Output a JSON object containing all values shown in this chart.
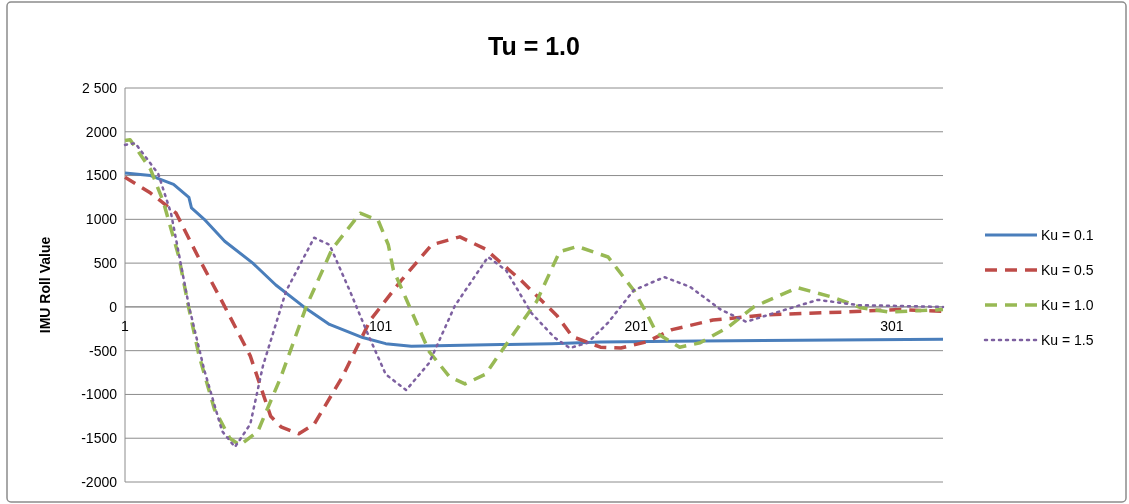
{
  "chart_data": {
    "type": "line",
    "title": "Tu = 1.0",
    "ylabel": "IMU Roll Value",
    "xlim": [
      1,
      321
    ],
    "xticks": [
      1,
      101,
      201,
      301
    ],
    "ylim": [
      -2000,
      2500
    ],
    "yticks": [
      -2000,
      -1500,
      -1000,
      -500,
      0,
      500,
      1000,
      1500,
      2000,
      {
        "value": 2500,
        "label": "2 500"
      }
    ],
    "grid": "y",
    "legend": "right",
    "marker": "none",
    "series": [
      {
        "name": "Ku = 0.1",
        "color": "#4a7ebb",
        "line_style": "solid",
        "x": [
          1,
          11,
          20,
          26,
          27,
          32,
          40,
          51,
          60,
          71,
          81,
          94,
          103,
          113,
          128,
          148,
          168,
          187,
          226,
          265,
          321
        ],
        "values": [
          1530,
          1500,
          1400,
          1250,
          1130,
          1000,
          750,
          500,
          250,
          0,
          -200,
          -350,
          -420,
          -450,
          -440,
          -430,
          -420,
          -400,
          -390,
          -380,
          -370
        ]
      },
      {
        "name": "Ku = 0.5",
        "color": "#be4b48",
        "line_style": "dashed",
        "x": [
          1,
          11,
          21,
          30,
          39,
          50,
          58,
          62,
          69,
          75,
          86,
          97,
          109,
          121,
          132,
          142,
          156,
          170,
          176,
          187,
          195,
          205,
          215,
          231,
          252,
          281,
          304,
          321
        ],
        "values": [
          1480,
          1300,
          1070,
          550,
          60,
          -560,
          -1250,
          -1370,
          -1450,
          -1340,
          -800,
          -150,
          300,
          710,
          800,
          660,
          300,
          -100,
          -340,
          -460,
          -470,
          -400,
          -260,
          -150,
          -90,
          -60,
          -30,
          -50
        ]
      },
      {
        "name": "Ku = 1.0",
        "color": "#98b954",
        "line_style": "dashed",
        "x": [
          1,
          3,
          11,
          16,
          22,
          26,
          30,
          36,
          42,
          46,
          53,
          62,
          72,
          82,
          93,
          100,
          104,
          106,
          111,
          120,
          128,
          134,
          142,
          152,
          162,
          171,
          178,
          190,
          200,
          205,
          209,
          218,
          226,
          237,
          247,
          264,
          278,
          289,
          300,
          321
        ],
        "values": [
          1900,
          1910,
          1570,
          1200,
          580,
          -20,
          -560,
          -1170,
          -1500,
          -1580,
          -1420,
          -800,
          10,
          660,
          1070,
          990,
          710,
          420,
          90,
          -510,
          -800,
          -880,
          -770,
          -350,
          60,
          630,
          690,
          570,
          190,
          -70,
          -300,
          -460,
          -410,
          -230,
          0,
          220,
          110,
          -10,
          -60,
          -30
        ]
      },
      {
        "name": "Ku = 1.5",
        "color": "#7d60a0",
        "line_style": "dotted",
        "x": [
          1,
          5,
          14,
          19,
          26,
          32,
          39,
          44,
          50,
          55,
          64,
          75,
          81,
          89,
          96,
          103,
          111,
          120,
          130,
          143,
          150,
          160,
          169,
          175,
          182,
          190,
          200,
          212,
          222,
          234,
          244,
          255,
          272,
          288,
          321
        ],
        "values": [
          1850,
          1870,
          1520,
          1070,
          10,
          -720,
          -1420,
          -1600,
          -1340,
          -670,
          180,
          790,
          710,
          180,
          -310,
          -770,
          -950,
          -640,
          10,
          570,
          420,
          -70,
          -350,
          -470,
          -410,
          -180,
          190,
          340,
          230,
          -30,
          -170,
          -70,
          80,
          20,
          0
        ]
      }
    ]
  }
}
